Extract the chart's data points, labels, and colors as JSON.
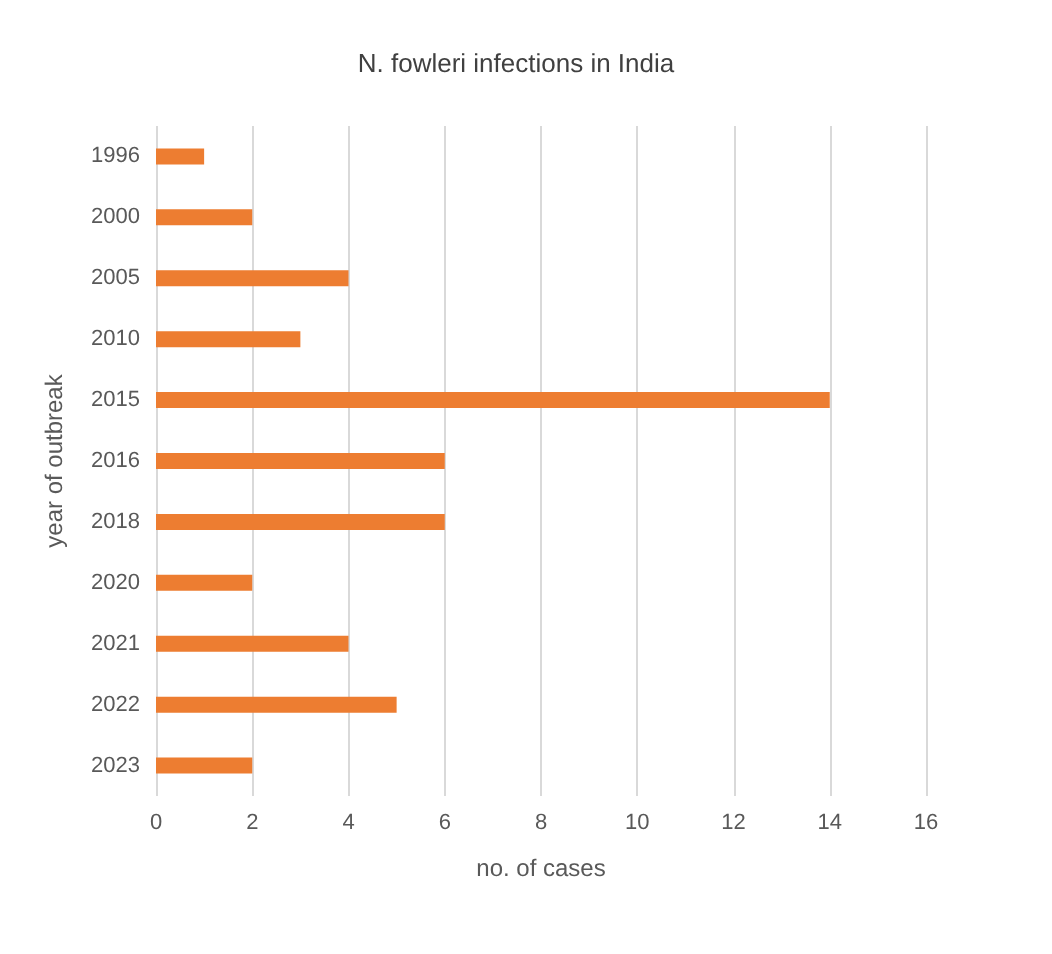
{
  "chart_data": {
    "type": "bar",
    "orientation": "horizontal",
    "title": "N. fowleri infections in India",
    "xlabel": "no. of cases",
    "ylabel": "year of outbreak",
    "categories": [
      "1996",
      "2000",
      "2005",
      "2010",
      "2015",
      "2016",
      "2018",
      "2020",
      "2021",
      "2022",
      "2023"
    ],
    "values": [
      1,
      2,
      4,
      3,
      14,
      6,
      6,
      2,
      4,
      5,
      2
    ],
    "color": "#ed7d31",
    "xlim": [
      0,
      16
    ],
    "xticks": [
      0,
      2,
      4,
      6,
      8,
      10,
      12,
      14,
      16
    ],
    "grid": "x"
  }
}
